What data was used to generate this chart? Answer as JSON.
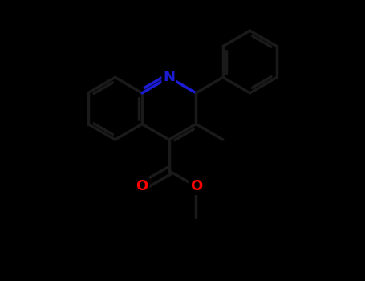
{
  "background_color": "#000000",
  "bond_color": "#1a1a1a",
  "N_color": "#1c1cd4",
  "O_color": "#ff0000",
  "bond_lw": 2.5,
  "dbo_aromatic": 0.07,
  "dbo_carbonyl": 0.08,
  "figsize": [
    4.55,
    3.5
  ],
  "dpi": 100,
  "xlim": [
    -3.5,
    3.5
  ],
  "ylim": [
    -3.2,
    2.8
  ]
}
